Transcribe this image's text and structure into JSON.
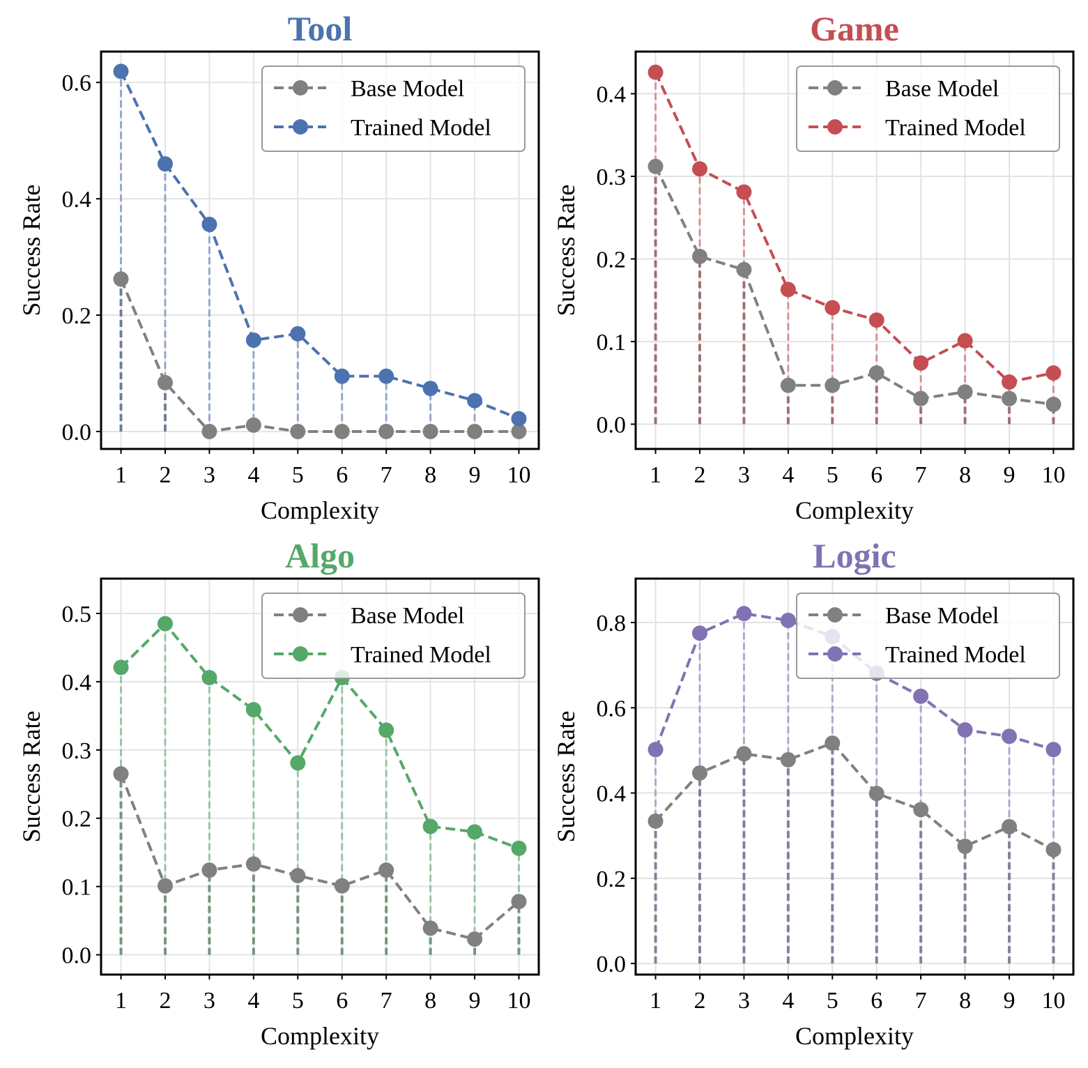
{
  "chart_data": [
    {
      "type": "line",
      "title": "Tool",
      "title_color": "#4c72b0",
      "xlabel": "Complexity",
      "ylabel": "Success Rate",
      "x": [
        1,
        2,
        3,
        4,
        5,
        6,
        7,
        8,
        9,
        10
      ],
      "xticks": [
        "1",
        "2",
        "3",
        "4",
        "5",
        "6",
        "7",
        "8",
        "9",
        "10"
      ],
      "yticks": [
        "0.0",
        "0.2",
        "0.4",
        "0.6"
      ],
      "ylim": [
        -0.03,
        0.653
      ],
      "grid": true,
      "legend_position": "top-right",
      "series": [
        {
          "name": "Base Model",
          "color": "#808080",
          "values": [
            0.262,
            0.084,
            0.0,
            0.011,
            0.0,
            0.0,
            0.0,
            0.0,
            0.0,
            0.0
          ]
        },
        {
          "name": "Trained Model",
          "color": "#4c72b0",
          "values": [
            0.619,
            0.46,
            0.356,
            0.157,
            0.168,
            0.095,
            0.095,
            0.074,
            0.053,
            0.022
          ]
        }
      ]
    },
    {
      "type": "line",
      "title": "Game",
      "title_color": "#c44e52",
      "xlabel": "Complexity",
      "ylabel": "Success Rate",
      "x": [
        1,
        2,
        3,
        4,
        5,
        6,
        7,
        8,
        9,
        10
      ],
      "xticks": [
        "1",
        "2",
        "3",
        "4",
        "5",
        "6",
        "7",
        "8",
        "9",
        "10"
      ],
      "yticks": [
        "0.0",
        "0.1",
        "0.2",
        "0.3",
        "0.4"
      ],
      "ylim": [
        -0.03,
        0.451
      ],
      "grid": true,
      "legend_position": "top-right",
      "series": [
        {
          "name": "Base Model",
          "color": "#808080",
          "values": [
            0.312,
            0.203,
            0.187,
            0.047,
            0.047,
            0.062,
            0.031,
            0.039,
            0.031,
            0.024
          ]
        },
        {
          "name": "Trained Model",
          "color": "#c44e52",
          "values": [
            0.426,
            0.309,
            0.281,
            0.163,
            0.141,
            0.126,
            0.074,
            0.101,
            0.051,
            0.062
          ]
        }
      ]
    },
    {
      "type": "line",
      "title": "Algo",
      "title_color": "#55a868",
      "xlabel": "Complexity",
      "ylabel": "Success Rate",
      "x": [
        1,
        2,
        3,
        4,
        5,
        6,
        7,
        8,
        9,
        10
      ],
      "xticks": [
        "1",
        "2",
        "3",
        "4",
        "5",
        "6",
        "7",
        "8",
        "9",
        "10"
      ],
      "yticks": [
        "0.0",
        "0.1",
        "0.2",
        "0.3",
        "0.4",
        "0.5"
      ],
      "ylim": [
        -0.029,
        0.551
      ],
      "grid": true,
      "legend_position": "top-right",
      "series": [
        {
          "name": "Base Model",
          "color": "#808080",
          "values": [
            0.265,
            0.101,
            0.124,
            0.133,
            0.116,
            0.101,
            0.124,
            0.039,
            0.023,
            0.078
          ]
        },
        {
          "name": "Trained Model",
          "color": "#55a868",
          "values": [
            0.421,
            0.485,
            0.406,
            0.359,
            0.281,
            0.406,
            0.329,
            0.188,
            0.18,
            0.156
          ]
        }
      ]
    },
    {
      "type": "line",
      "title": "Logic",
      "title_color": "#8172b3",
      "xlabel": "Complexity",
      "ylabel": "Success Rate",
      "x": [
        1,
        2,
        3,
        4,
        5,
        6,
        7,
        8,
        9,
        10
      ],
      "xticks": [
        "1",
        "2",
        "3",
        "4",
        "5",
        "6",
        "7",
        "8",
        "9",
        "10"
      ],
      "yticks": [
        "0.0",
        "0.2",
        "0.4",
        "0.6",
        "0.8"
      ],
      "ylim": [
        -0.026,
        0.903
      ],
      "grid": true,
      "legend_position": "top-right",
      "series": [
        {
          "name": "Base Model",
          "color": "#808080",
          "values": [
            0.334,
            0.447,
            0.492,
            0.478,
            0.517,
            0.399,
            0.361,
            0.275,
            0.321,
            0.267
          ]
        },
        {
          "name": "Trained Model",
          "color": "#8172b3",
          "values": [
            0.502,
            0.775,
            0.821,
            0.805,
            0.767,
            0.681,
            0.627,
            0.548,
            0.533,
            0.502
          ]
        }
      ]
    }
  ]
}
